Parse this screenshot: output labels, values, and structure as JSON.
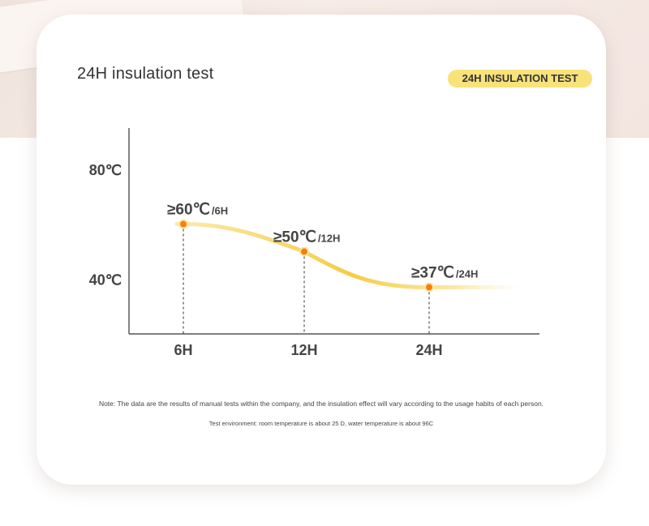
{
  "header": {
    "title": "24H insulation test",
    "badge": "24H INSULATION TEST"
  },
  "chart_data": {
    "type": "line",
    "title": "",
    "xlabel": "",
    "ylabel": "",
    "x_ticks": [
      "6H",
      "12H",
      "24H"
    ],
    "y_ticks": [
      "80℃",
      "40℃"
    ],
    "y_tick_values": [
      80,
      40
    ],
    "ylim": [
      20,
      95
    ],
    "series": [
      {
        "values": [
          60,
          50,
          37
        ],
        "categories": [
          "6H",
          "12H",
          "24H"
        ],
        "labels": [
          {
            "main": "≥60℃",
            "sub": "/6H"
          },
          {
            "main": "≥50℃",
            "sub": "/12H"
          },
          {
            "main": "≥37℃",
            "sub": "/24H"
          }
        ]
      }
    ],
    "grid": false,
    "line_color": "#f5cc45",
    "point_color": "#f4800d"
  },
  "notes": {
    "line1": "Note: The data are the results of manual tests within the company, and the insulation effect will vary according to the usage habits of each person.",
    "line2": "Test environment: room temperature is about 25 D, water temperature is about 96C"
  }
}
